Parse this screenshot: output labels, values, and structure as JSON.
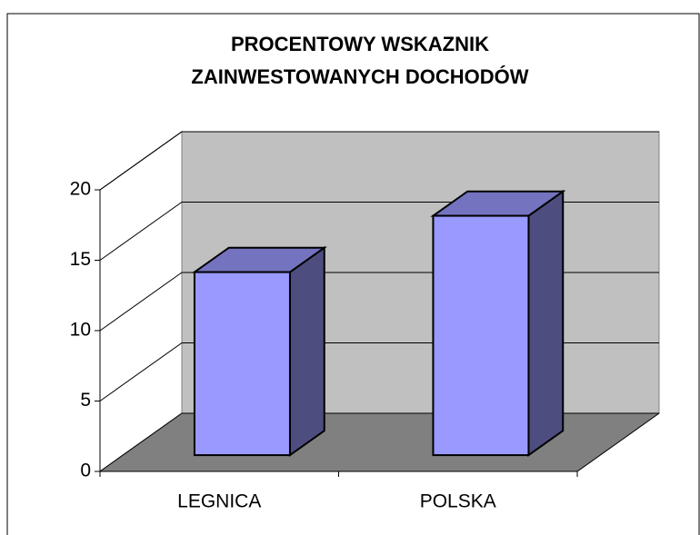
{
  "chart_data": {
    "type": "bar3d",
    "title": [
      "PROCENTOWY WSKAZNIK",
      "ZAINWESTOWANYCH DOCHODÓW"
    ],
    "categories": [
      "LEGNICA",
      "POLSKA"
    ],
    "values": [
      13,
      17
    ],
    "color": "#9999ff",
    "ylim": [
      0,
      20
    ],
    "yticks": [
      0,
      5,
      10,
      15,
      20
    ],
    "grid": true
  }
}
